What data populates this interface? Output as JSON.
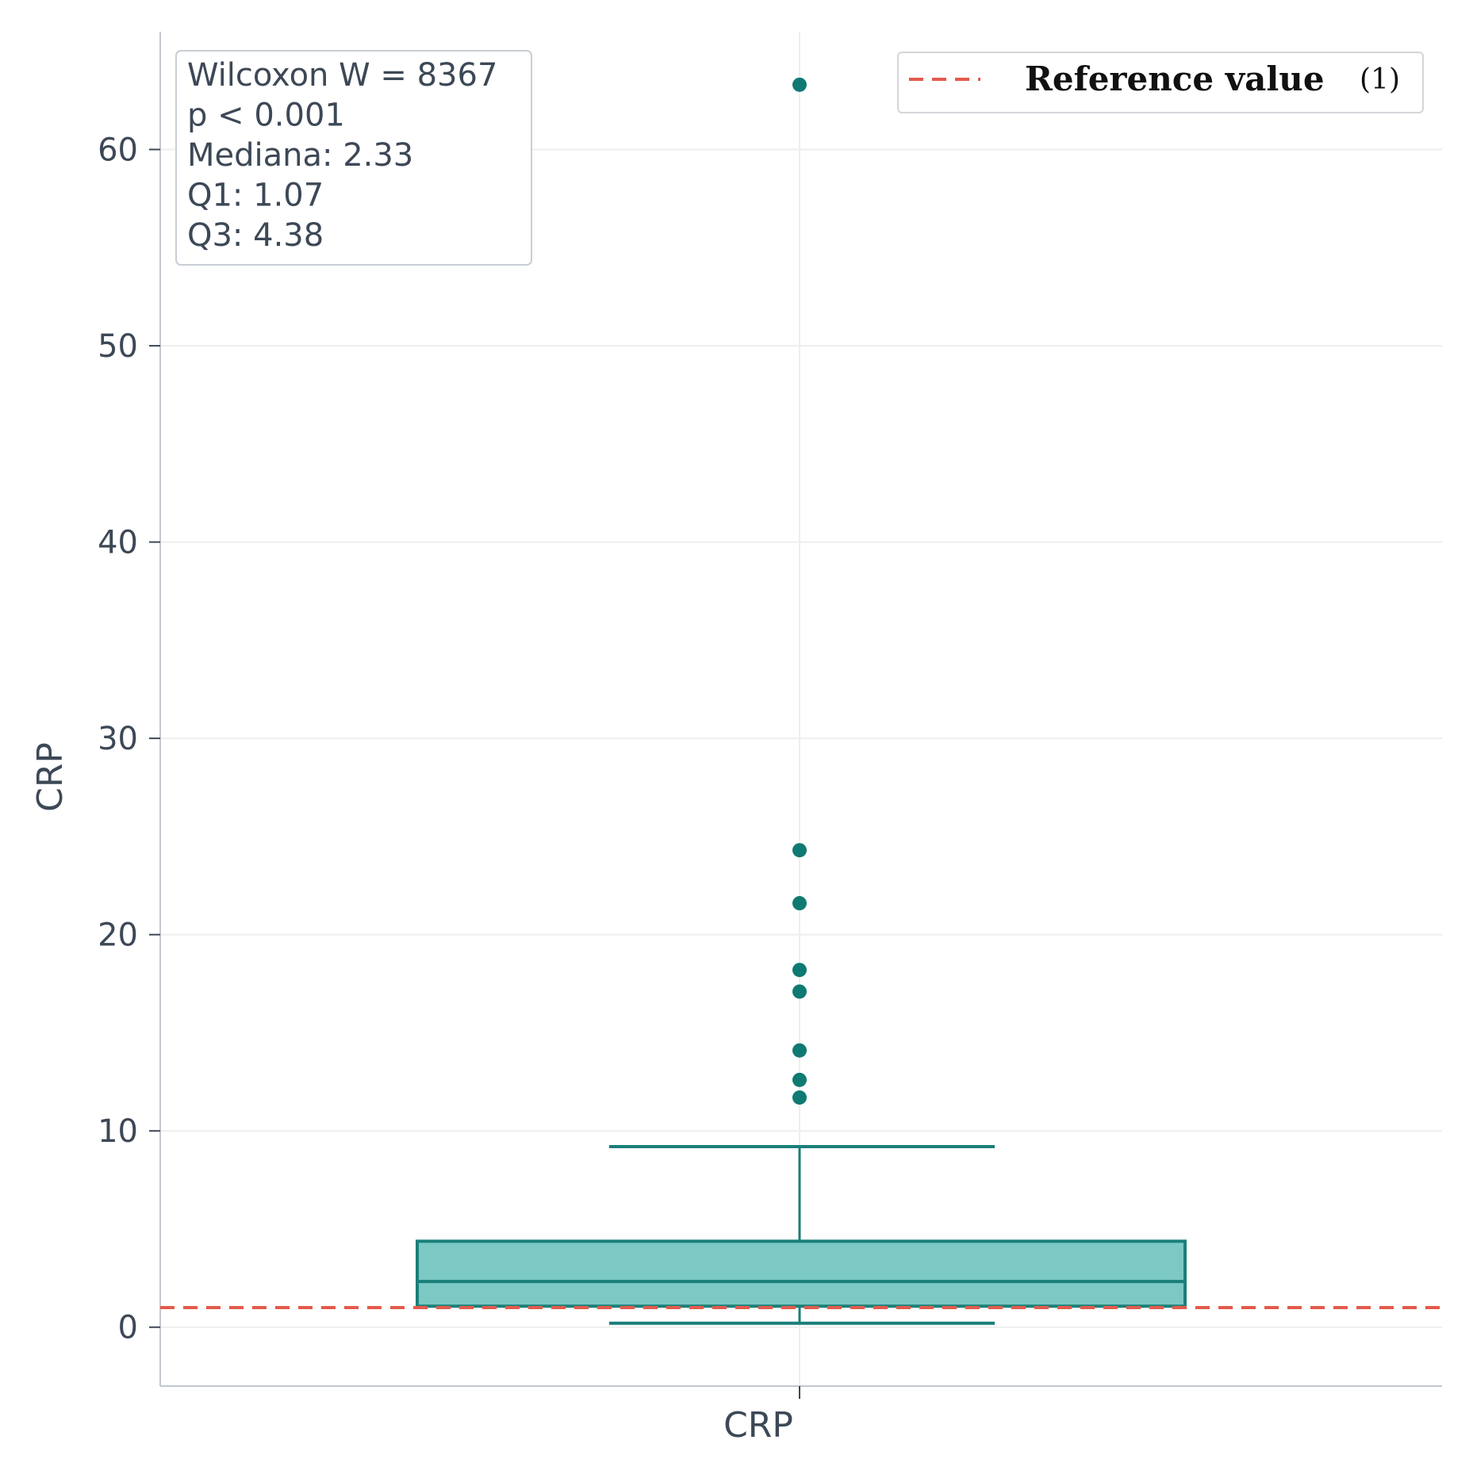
{
  "chart_data": {
    "type": "box",
    "xlabel": "",
    "ylabel": "CRP",
    "categories": [
      "CRP"
    ],
    "ylim": [
      -3,
      66
    ],
    "yticks": [
      0,
      10,
      20,
      30,
      40,
      50,
      60
    ],
    "grid": true,
    "legend_position": "top-right",
    "series": [
      {
        "category": "CRP",
        "whisker_low": 0.2,
        "q1": 1.07,
        "median": 2.33,
        "q3": 4.38,
        "whisker_high": 9.2,
        "outliers": [
          11.7,
          12.6,
          14.1,
          17.1,
          18.2,
          21.6,
          24.3,
          63.3
        ]
      }
    ],
    "reference_line": {
      "value": 1,
      "label": "Reference value",
      "note": "(1)"
    },
    "stats_box": [
      "Wilcoxon W = 8367",
      "p < 0.001",
      "Mediana: 2.33",
      "Q1: 1.07",
      "Q3: 4.38"
    ],
    "colors": {
      "box_fill": "#7cc8c4",
      "box_edge": "#1a7f78",
      "outlier": "#0f7a72",
      "reference": "#e35a4c",
      "axis_text": "#3d4856",
      "grid": "#eeeeee"
    }
  }
}
